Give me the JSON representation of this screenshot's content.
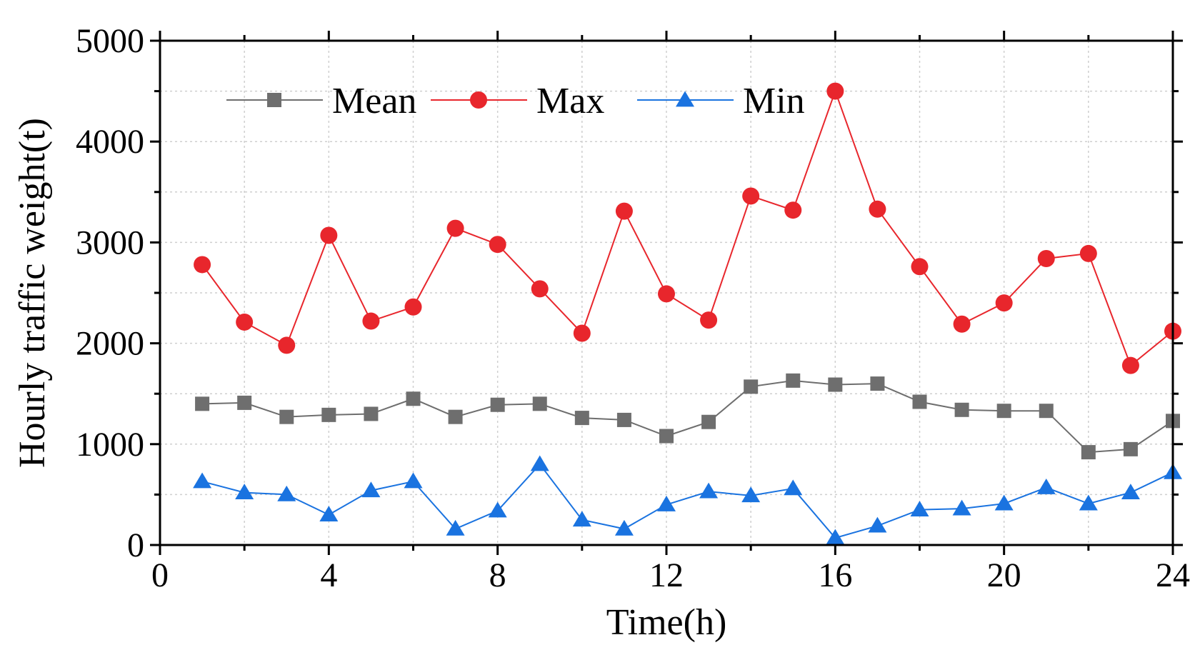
{
  "chart_data": {
    "type": "line",
    "title": "",
    "xlabel": "Time(h)",
    "ylabel": "Hourly traffic weight(t)",
    "xlim": [
      0,
      24
    ],
    "ylim": [
      0,
      5000
    ],
    "xticks": [
      0,
      4,
      8,
      12,
      16,
      20,
      24
    ],
    "yticks": [
      0,
      1000,
      2000,
      3000,
      4000,
      5000
    ],
    "xtick_labels": [
      "0",
      "4",
      "8",
      "12",
      "16",
      "20",
      "24"
    ],
    "ytick_labels": [
      "0",
      "1000",
      "2000",
      "3000",
      "4000",
      "5000"
    ],
    "grid": true,
    "legend_position": "top-left",
    "x": [
      1,
      2,
      3,
      4,
      5,
      6,
      7,
      8,
      9,
      10,
      11,
      12,
      13,
      14,
      15,
      16,
      17,
      18,
      19,
      20,
      21,
      22,
      23,
      24
    ],
    "series": [
      {
        "name": "Mean",
        "color": "#6e6e6e",
        "marker": "square",
        "values": [
          1400,
          1410,
          1270,
          1290,
          1300,
          1450,
          1270,
          1390,
          1400,
          1260,
          1240,
          1080,
          1220,
          1570,
          1630,
          1590,
          1600,
          1420,
          1340,
          1330,
          1330,
          920,
          950,
          1230
        ]
      },
      {
        "name": "Max",
        "color": "#e8262c",
        "marker": "circle",
        "values": [
          2780,
          2210,
          1980,
          3070,
          2220,
          2360,
          3140,
          2980,
          2540,
          2100,
          3310,
          2490,
          2230,
          3460,
          3320,
          4500,
          3330,
          2760,
          2190,
          2400,
          2840,
          2890,
          1780,
          2120
        ]
      },
      {
        "name": "Min",
        "color": "#1a73e0",
        "marker": "triangle",
        "values": [
          630,
          520,
          500,
          300,
          540,
          630,
          160,
          340,
          800,
          250,
          160,
          400,
          530,
          490,
          560,
          70,
          190,
          350,
          360,
          410,
          570,
          410,
          520,
          720
        ]
      }
    ]
  }
}
